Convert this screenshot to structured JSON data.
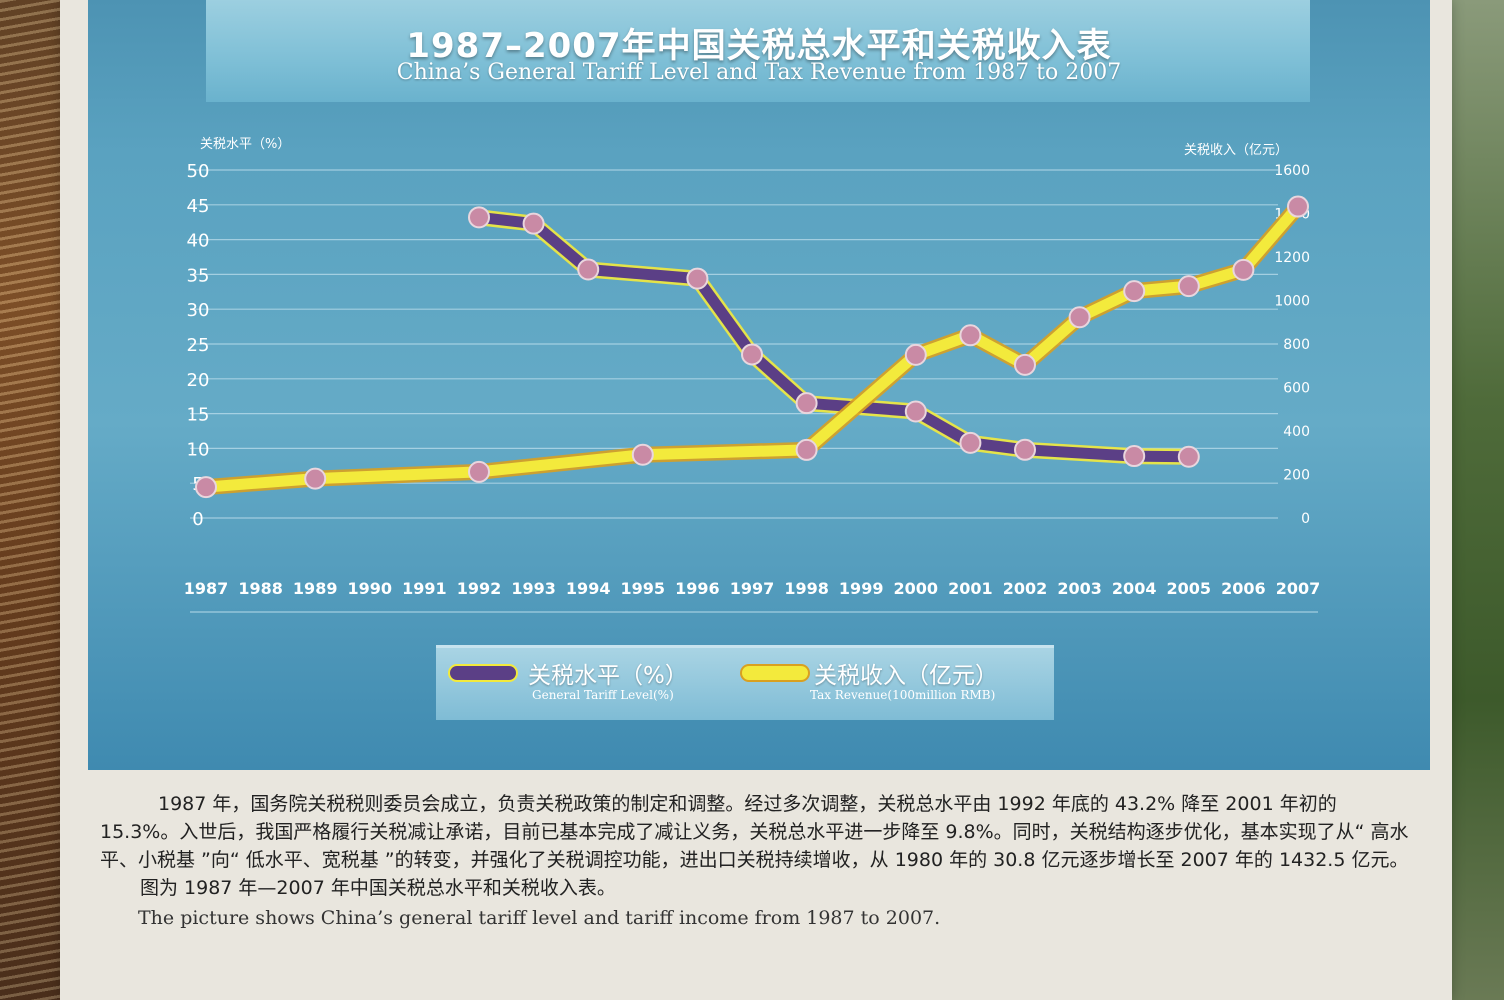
{
  "title_cn": "1987–2007年中国关税总水平和关税收入表",
  "title_en": "China’s General Tariff  Level and Tax Revenue from 1987 to 2007",
  "legend": {
    "tariff_cn": "关税水平（%）",
    "tariff_en": "General Tariff Level(%)",
    "revenue_cn": "关税收入（亿元）",
    "revenue_en": "Tax Revenue(100million RMB)"
  },
  "colors": {
    "tariff": "#5b3f86",
    "revenue": "#f3ea3c",
    "marker": "#c98aa5"
  },
  "description": {
    "paragraph": "1987 年，国务院关税税则委员会成立，负责关税政策的制定和调整。经过多次调整，关税总水平由 1992 年底的 43.2% 降至 2001 年初的 15.3%。入世后，我国严格履行关税减让承诺，目前已基本完成了减让义务，关税总水平进一步降至 9.8%。同时，关税结构逐步优化，基本实现了从“ 高水平、小税基 ”向“ 低水平、宽税基 ”的转变，并强化了关税调控功能，进出口关税持续增收，从 1980 年的 30.8 亿元逐步增长至 2007 年的 1432.5 亿元。",
    "caption_cn": "图为 1987 年—2007 年中国关税总水平和关税收入表。",
    "caption_en": "The picture shows China’s general tariff level and tariff income from 1987 to 2007."
  },
  "chart_data": {
    "type": "line",
    "x": [
      "1987",
      "1988",
      "1989",
      "1990",
      "1991",
      "1992",
      "1993",
      "1994",
      "1995",
      "1996",
      "1997",
      "1998",
      "1999",
      "2000",
      "2001",
      "2002",
      "2003",
      "2004",
      "2005",
      "2006",
      "2007"
    ],
    "y_left_label": "关税水平（%）",
    "y_right_label": "关税收入（亿元）",
    "y_left_ticks": [
      "50",
      "45",
      "40",
      "35",
      "30",
      "25",
      "20",
      "15",
      "10",
      "5",
      "0"
    ],
    "y_right_ticks": [
      "1600",
      "1400",
      "1200",
      "1000",
      "800",
      "600",
      "400",
      "200",
      "0"
    ],
    "ylim_left": [
      0,
      50
    ],
    "ylim_right": [
      0,
      1600
    ],
    "series": [
      {
        "name": "关税水平（%）",
        "axis": "left",
        "color": "#5b3f86",
        "points": [
          {
            "x": "1992",
            "y": 43.2
          },
          {
            "x": "1993",
            "y": 42.3
          },
          {
            "x": "1994",
            "y": 35.7
          },
          {
            "x": "1996",
            "y": 34.4
          },
          {
            "x": "1997",
            "y": 23.5
          },
          {
            "x": "1998",
            "y": 16.5
          },
          {
            "x": "2000",
            "y": 15.3
          },
          {
            "x": "2001",
            "y": 10.8
          },
          {
            "x": "2002",
            "y": 9.8
          },
          {
            "x": "2004",
            "y": 8.9
          },
          {
            "x": "2005",
            "y": 8.8
          }
        ]
      },
      {
        "name": "关税收入（亿元）",
        "axis": "right",
        "color": "#f3ea3c",
        "points": [
          {
            "x": "1987",
            "y": 142
          },
          {
            "x": "1989",
            "y": 181
          },
          {
            "x": "1992",
            "y": 212
          },
          {
            "x": "1995",
            "y": 291
          },
          {
            "x": "1998",
            "y": 313
          },
          {
            "x": "2000",
            "y": 750
          },
          {
            "x": "2001",
            "y": 840
          },
          {
            "x": "2002",
            "y": 704
          },
          {
            "x": "2003",
            "y": 923
          },
          {
            "x": "2004",
            "y": 1043
          },
          {
            "x": "2005",
            "y": 1066
          },
          {
            "x": "2006",
            "y": 1141
          },
          {
            "x": "2007",
            "y": 1432
          }
        ]
      }
    ]
  }
}
